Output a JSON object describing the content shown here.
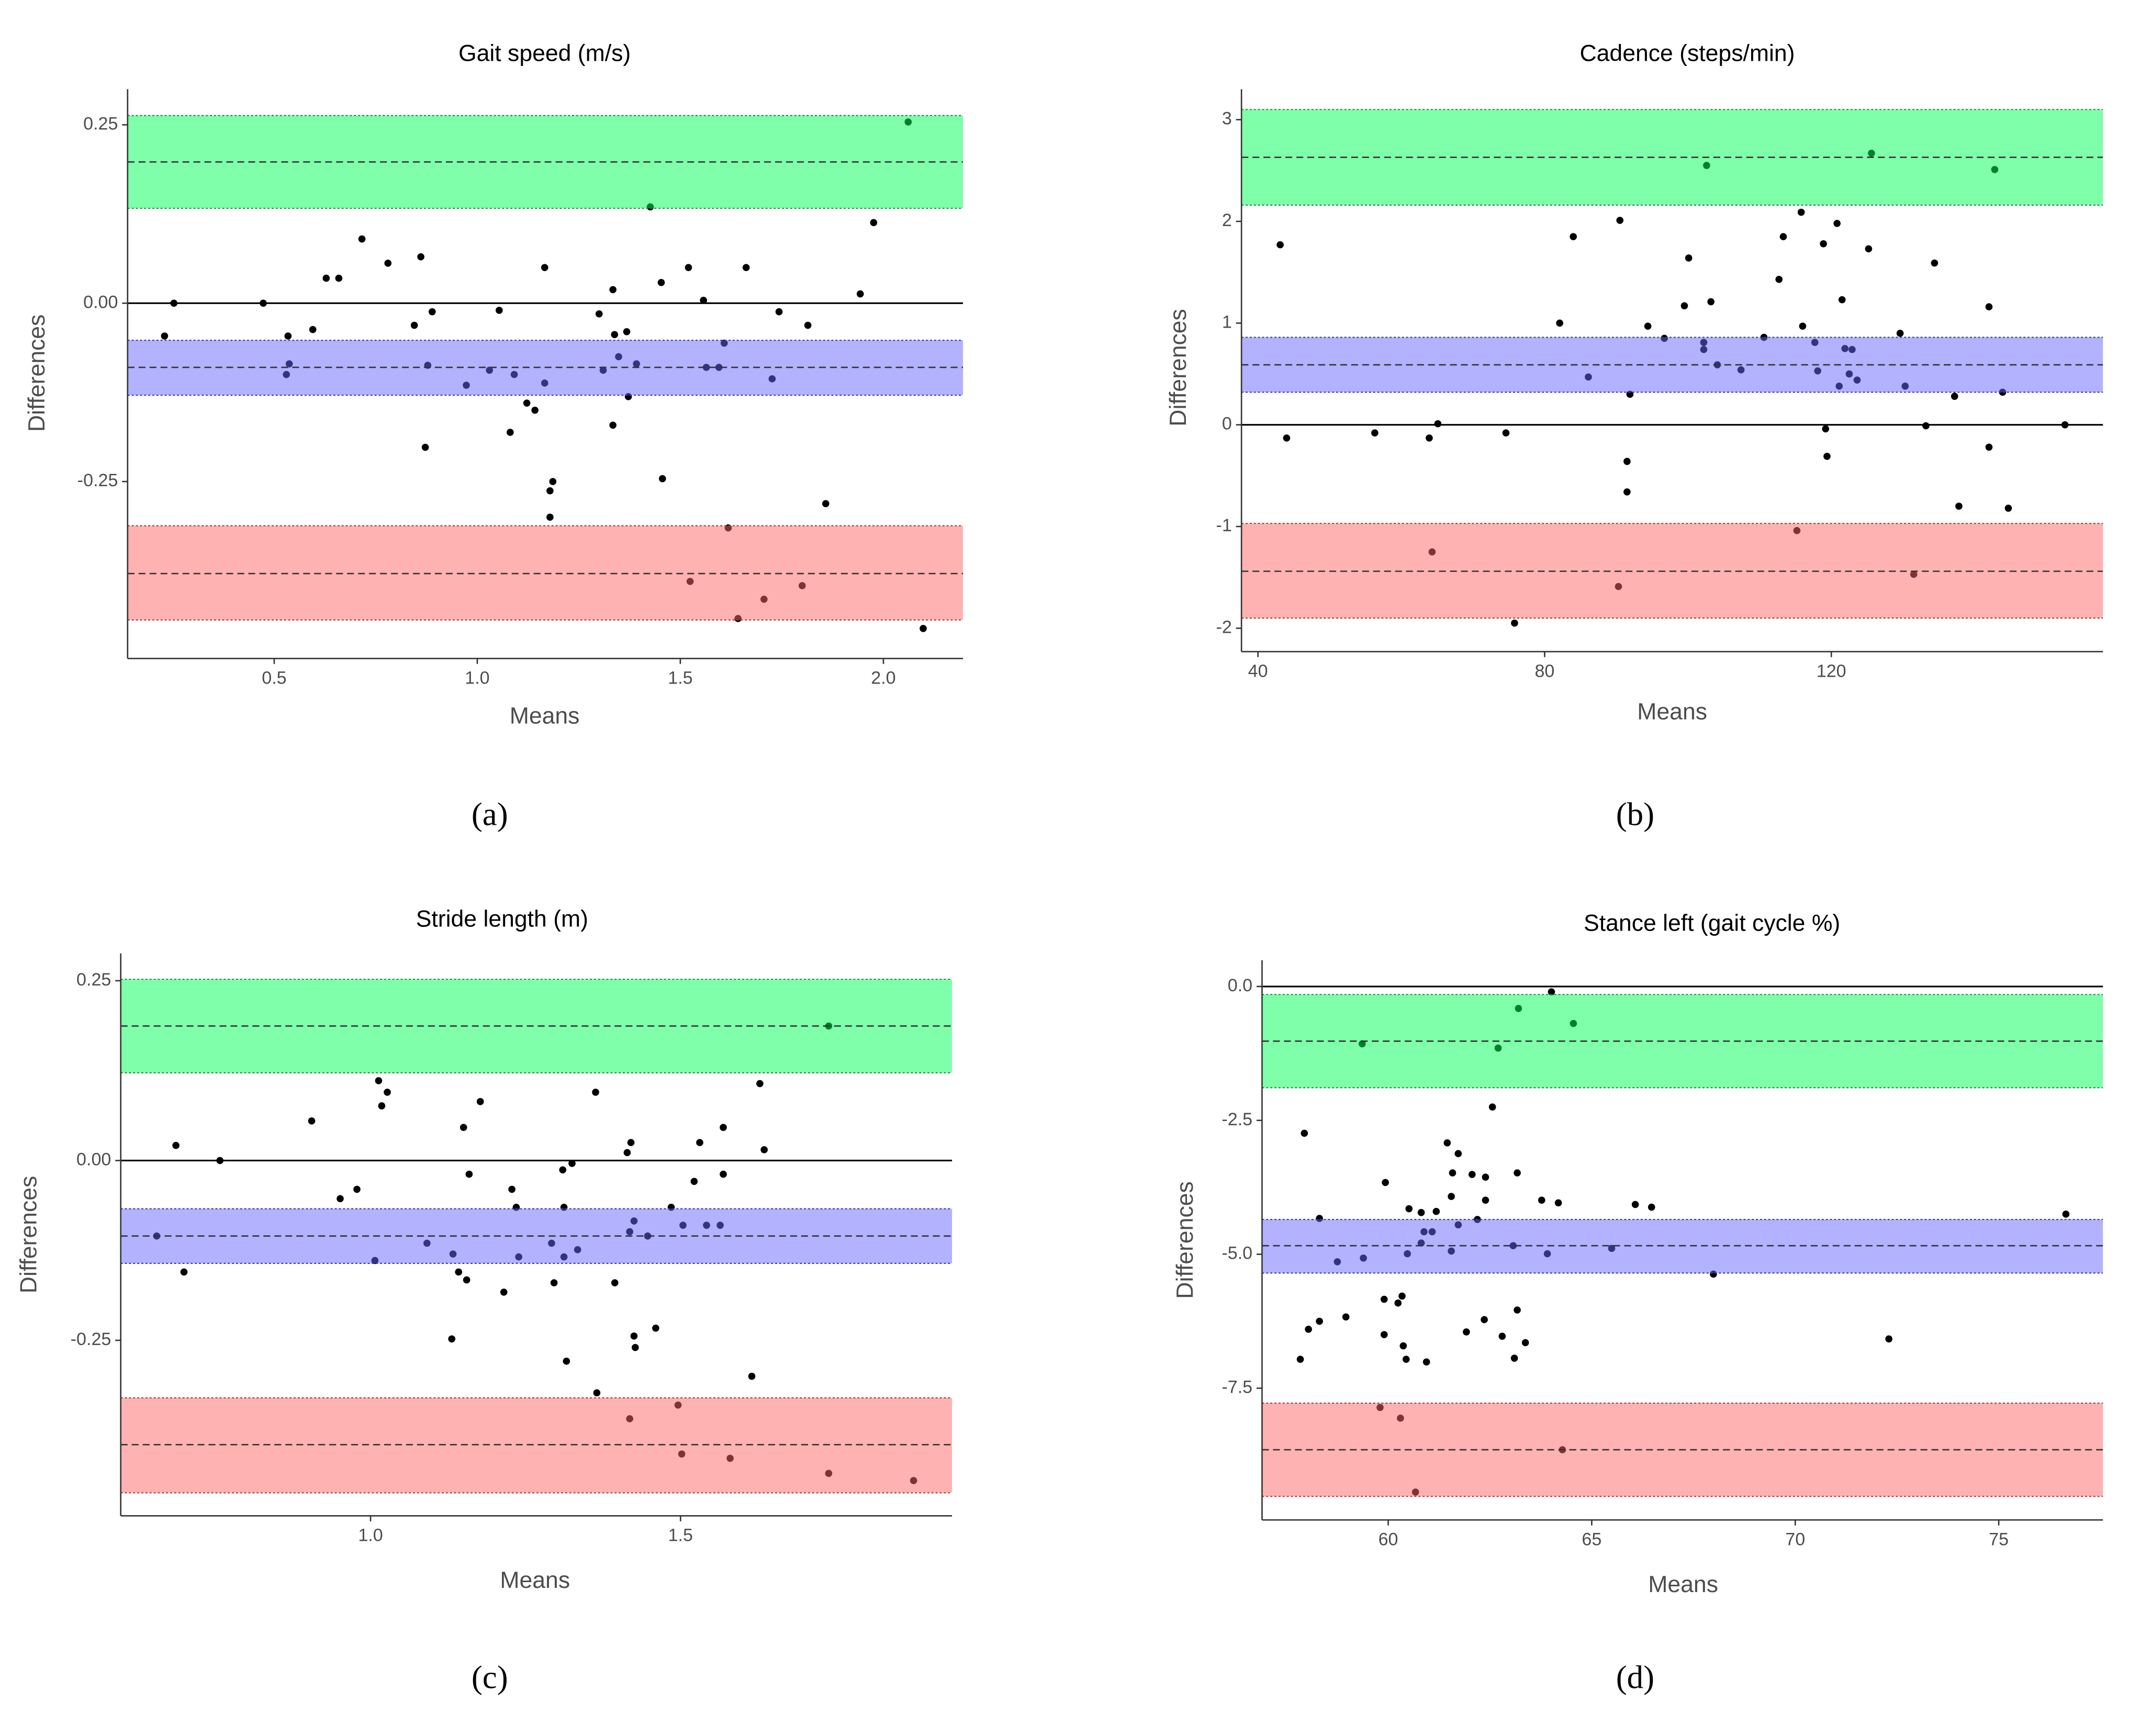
{
  "chart_data": [
    {
      "type": "scatter",
      "title": "Gait speed (m/s)",
      "panel_label": "(a)",
      "xlabel": "Means",
      "ylabel": "Differences",
      "xlim": [
        0.139,
        2.196
      ],
      "ylim": [
        -0.498,
        0.3
      ],
      "xticks": [
        0.5,
        {
          "value": 1.0,
          "label": "1.0"
        },
        1.5,
        {
          "value": 2.0,
          "label": "2.0"
        }
      ],
      "yticks": [
        {
          "value": -0.25,
          "label": "-0.25"
        },
        {
          "value": 0,
          "label": "0.00"
        },
        0.25
      ],
      "hline": 0,
      "point_color": "#000000",
      "bands": [
        {
          "center": 0.198,
          "lower": 0.133,
          "upper": 0.263,
          "color": "#00ff55"
        },
        {
          "center": -0.09,
          "lower": -0.129,
          "upper": -0.052,
          "color": "#6666ff"
        },
        {
          "center": -0.379,
          "lower": -0.444,
          "upper": -0.312,
          "color": "#ff6666"
        }
      ],
      "x": [
        0.23,
        0.253,
        0.473,
        0.534,
        0.537,
        0.53,
        0.595,
        0.628,
        0.659,
        0.716,
        0.78,
        0.845,
        0.861,
        0.872,
        0.878,
        0.889,
        0.973,
        1.03,
        1.054,
        1.081,
        1.091,
        1.122,
        1.142,
        1.166,
        1.166,
        1.179,
        1.186,
        1.179,
        1.3,
        1.31,
        1.334,
        1.338,
        1.334,
        1.348,
        1.368,
        1.372,
        1.392,
        1.426,
        1.453,
        1.456,
        1.52,
        1.524,
        1.557,
        1.564,
        1.595,
        1.608,
        1.618,
        1.642,
        1.662,
        1.706,
        1.726,
        1.743,
        1.8,
        1.814,
        1.858,
        1.943,
        1.976,
        2.061,
        2.098
      ],
      "y": [
        -0.046,
        0,
        0,
        -0.046,
        -0.085,
        -0.1,
        -0.037,
        0.035,
        0.035,
        0.09,
        0.056,
        -0.031,
        0.065,
        -0.202,
        -0.087,
        -0.012,
        -0.115,
        -0.094,
        -0.01,
        -0.181,
        -0.1,
        -0.14,
        -0.15,
        -0.112,
        0.05,
        -0.263,
        -0.25,
        -0.3,
        -0.015,
        -0.094,
        0.019,
        -0.044,
        -0.171,
        -0.075,
        -0.04,
        -0.131,
        -0.085,
        0.135,
        0.029,
        -0.246,
        0.05,
        -0.39,
        0.004,
        -0.09,
        -0.09,
        -0.056,
        -0.315,
        -0.442,
        0.05,
        -0.415,
        -0.106,
        -0.012,
        -0.396,
        -0.031,
        -0.281,
        0.013,
        0.113,
        0.254,
        -0.456
      ]
    },
    {
      "type": "scatter",
      "title": "Cadence (steps/min)",
      "panel_label": "(b)",
      "xlabel": "Means",
      "ylabel": "Differences",
      "xlim": [
        37.7,
        157.9
      ],
      "ylim": [
        -2.23,
        3.3
      ],
      "xticks": [
        40,
        80,
        120
      ],
      "yticks": [
        -2,
        -1,
        0,
        1,
        2,
        3
      ],
      "hline": 0,
      "point_color": "#000000",
      "bands": [
        {
          "center": 2.63,
          "lower": 2.16,
          "upper": 3.1,
          "color": "#00ff55"
        },
        {
          "center": 0.59,
          "lower": 0.32,
          "upper": 0.86,
          "color": "#6666ff"
        },
        {
          "center": -1.44,
          "lower": -1.9,
          "upper": -0.97,
          "color": "#ff6666"
        }
      ],
      "x": [
        43.1,
        44.0,
        56.3,
        63.9,
        65.1,
        64.3,
        74.6,
        75.8,
        82.1,
        84.0,
        86.1,
        90.5,
        90.3,
        91.5,
        91.5,
        91.9,
        94.4,
        96.7,
        99.5,
        100.1,
        102.2,
        102.2,
        102.6,
        103.2,
        104.1,
        107.4,
        110.6,
        112.7,
        113.3,
        115.2,
        115.8,
        116.0,
        117.7,
        118.1,
        118.9,
        119.2,
        119.4,
        120.8,
        121.1,
        121.5,
        121.9,
        122.5,
        122.9,
        123.6,
        125.2,
        125.6,
        129.6,
        130.3,
        131.5,
        133.2,
        134.4,
        137.2,
        137.8,
        142.0,
        142.0,
        142.8,
        143.9,
        144.7,
        152.6
      ],
      "y": [
        1.77,
        -0.13,
        -0.08,
        -0.13,
        0.01,
        -1.25,
        -0.08,
        -1.95,
        1.0,
        1.85,
        0.47,
        2.01,
        -1.59,
        -0.36,
        -0.66,
        0.3,
        0.97,
        0.85,
        1.17,
        1.64,
        0.81,
        0.74,
        2.55,
        1.21,
        0.59,
        0.54,
        0.86,
        1.43,
        1.85,
        -1.04,
        2.09,
        0.97,
        0.81,
        0.53,
        1.78,
        -0.04,
        -0.31,
        1.98,
        0.38,
        1.23,
        0.75,
        0.5,
        0.74,
        0.44,
        1.73,
        2.67,
        0.9,
        0.38,
        -1.47,
        -0.01,
        1.59,
        0.28,
        -0.8,
        1.16,
        -0.22,
        2.51,
        0.32,
        -0.82,
        0.0
      ]
    },
    {
      "type": "scatter",
      "title": "Stride length (m)",
      "panel_label": "(c)",
      "xlabel": "Means",
      "ylabel": "Differences",
      "xlim": [
        0.597,
        1.938
      ],
      "ylim": [
        -0.494,
        0.288
      ],
      "xticks": [
        {
          "value": 1.0,
          "label": "1.0"
        },
        1.5
      ],
      "yticks": [
        {
          "value": -0.25,
          "label": "-0.25"
        },
        {
          "value": 0,
          "label": "0.00"
        },
        0.25
      ],
      "hline": 0,
      "point_color": "#000000",
      "bands": [
        {
          "center": 0.187,
          "lower": 0.122,
          "upper": 0.252,
          "color": "#00ff55"
        },
        {
          "center": -0.105,
          "lower": -0.143,
          "upper": -0.067,
          "color": "#6666ff"
        },
        {
          "center": -0.395,
          "lower": -0.462,
          "upper": -0.33,
          "color": "#ff6666"
        }
      ],
      "x": [
        0.655,
        0.686,
        0.699,
        0.757,
        0.905,
        0.951,
        0.978,
        1.007,
        1.013,
        1.018,
        1.027,
        1.091,
        1.131,
        1.133,
        1.142,
        1.15,
        1.155,
        1.159,
        1.177,
        1.215,
        1.228,
        1.235,
        1.239,
        1.292,
        1.296,
        1.31,
        1.312,
        1.312,
        1.316,
        1.325,
        1.334,
        1.363,
        1.365,
        1.394,
        1.414,
        1.418,
        1.418,
        1.42,
        1.425,
        1.425,
        1.427,
        1.447,
        1.46,
        1.485,
        1.496,
        1.502,
        1.504,
        1.522,
        1.531,
        1.542,
        1.564,
        1.569,
        1.569,
        1.58,
        1.615,
        1.628,
        1.635,
        1.739,
        1.739,
        1.876
      ],
      "y": [
        -0.105,
        0.021,
        -0.155,
        0.0,
        0.055,
        -0.053,
        -0.04,
        -0.139,
        0.111,
        0.076,
        0.095,
        -0.115,
        -0.248,
        -0.13,
        -0.155,
        0.046,
        -0.166,
        -0.019,
        0.082,
        -0.183,
        -0.04,
        -0.065,
        -0.134,
        -0.115,
        -0.17,
        -0.013,
        -0.065,
        -0.134,
        -0.279,
        -0.004,
        -0.124,
        0.095,
        -0.323,
        -0.17,
        0.011,
        -0.099,
        -0.359,
        0.025,
        -0.084,
        -0.244,
        -0.26,
        -0.105,
        -0.233,
        -0.065,
        -0.34,
        -0.408,
        -0.09,
        -0.029,
        0.025,
        -0.09,
        -0.09,
        0.046,
        -0.019,
        -0.414,
        -0.3,
        0.107,
        0.015,
        -0.435,
        0.187,
        -0.445
      ]
    },
    {
      "type": "scatter",
      "title": "Stance left (gait cycle %)",
      "panel_label": "(d)",
      "xlabel": "Means",
      "ylabel": "Differences",
      "xlim": [
        56.9,
        77.56
      ],
      "ylim": [
        -9.96,
        0.49
      ],
      "xticks": [
        60,
        65,
        70,
        75
      ],
      "yticks": [
        -7.5,
        {
          "value": -5,
          "label": "-5.0"
        },
        -2.5,
        {
          "value": 0,
          "label": "0.0"
        }
      ],
      "hline": 0,
      "point_color": "#000000",
      "bands": [
        {
          "center": -1.02,
          "lower": -1.89,
          "upper": -0.15,
          "color": "#00ff55"
        },
        {
          "center": -4.84,
          "lower": -5.35,
          "upper": -4.35,
          "color": "#6666ff"
        },
        {
          "center": -8.65,
          "lower": -9.52,
          "upper": -7.78,
          "color": "#ff6666"
        }
      ],
      "x": [
        57.84,
        57.94,
        58.04,
        58.31,
        58.31,
        58.75,
        58.96,
        59.39,
        59.36,
        59.8,
        59.93,
        59.9,
        59.9,
        60.24,
        60.3,
        60.34,
        60.37,
        60.44,
        60.51,
        60.47,
        60.67,
        60.81,
        60.81,
        60.88,
        60.94,
        61.08,
        61.18,
        61.45,
        61.55,
        61.55,
        61.58,
        61.72,
        61.72,
        61.92,
        62.06,
        62.19,
        62.36,
        62.39,
        62.39,
        62.56,
        62.7,
        62.8,
        63.07,
        63.1,
        63.17,
        63.17,
        63.2,
        63.37,
        63.77,
        63.91,
        64.01,
        64.18,
        64.28,
        64.55,
        65.49,
        66.07,
        66.47,
        67.99,
        72.3,
        76.65
      ],
      "y": [
        -6.96,
        -2.74,
        -6.4,
        -4.33,
        -6.25,
        -5.14,
        -6.17,
        -5.07,
        -1.07,
        -7.86,
        -3.66,
        -5.84,
        -6.5,
        -5.91,
        -8.06,
        -5.78,
        -6.71,
        -6.96,
        -4.15,
        -4.99,
        -9.44,
        -4.22,
        -4.79,
        -4.58,
        -7.01,
        -4.58,
        -4.2,
        -2.92,
        -3.92,
        -4.94,
        -3.48,
        -3.12,
        -4.45,
        -6.45,
        -3.51,
        -4.35,
        -6.22,
        -3.56,
        -3.99,
        -2.25,
        -1.15,
        -6.53,
        -4.84,
        -6.94,
        -3.48,
        -6.04,
        -0.41,
        -6.65,
        -3.99,
        -4.99,
        -0.1,
        -4.04,
        -8.65,
        -0.69,
        -4.89,
        -4.07,
        -4.12,
        -5.37,
        -6.58,
        -4.25
      ]
    }
  ]
}
